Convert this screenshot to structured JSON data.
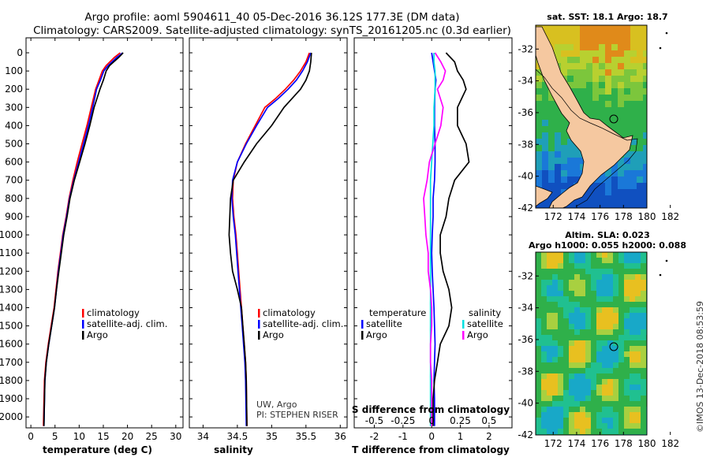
{
  "title": {
    "line1": "Argo profile: aoml 5904611_40 05-Dec-2016 36.12S 177.3E (DM data)",
    "line2": "Climatology: CARS2009. Satellite-adjusted climatology: synTS_20161205.nc (0.3d earlier)"
  },
  "watermark": "©IMOS 13-Dec-2018 08:53:59",
  "colors": {
    "climatology": "#ff0000",
    "satellite": "#0000ff",
    "argo": "#000000",
    "satellite_salinity": "#00e0e0",
    "argo_salinity": "#ff00ff",
    "land": "#f5c8a0"
  },
  "chart_data": [
    {
      "type": "line",
      "name": "temperature-panel",
      "xlabel": "temperature (deg C)",
      "xlim": [
        -1,
        31.5
      ],
      "ylim": [
        0,
        2060
      ],
      "y_inverted": true,
      "xticks": [
        "0",
        "5",
        "10",
        "15",
        "20",
        "25",
        "30"
      ],
      "xtick_values": [
        0,
        5,
        10,
        15,
        20,
        25,
        30
      ],
      "yticks": [
        "0",
        "100",
        "200",
        "300",
        "400",
        "500",
        "600",
        "700",
        "800",
        "900",
        "1000",
        "1100",
        "1200",
        "1300",
        "1400",
        "1500",
        "1600",
        "1700",
        "1800",
        "1900",
        "2000"
      ],
      "ytick_values": [
        0,
        100,
        200,
        300,
        400,
        500,
        600,
        700,
        800,
        900,
        1000,
        1100,
        1200,
        1300,
        1400,
        1500,
        1600,
        1700,
        1800,
        1900,
        2000
      ],
      "legend": [
        "climatology",
        "satellite-adj. clim.",
        "Argo"
      ],
      "legend_position": "lower-right",
      "series": [
        {
          "name": "climatology",
          "color": "#ff0000",
          "x": [
            18.5,
            17.3,
            15.6,
            14.8,
            14.1,
            13.4,
            12.5,
            11.6,
            10.6,
            9.6,
            8.7,
            7.9,
            7.3,
            6.6,
            6.1,
            5.6,
            5.2,
            4.8,
            4.2,
            3.6,
            3.1,
            2.8,
            2.6
          ],
          "y": [
            0,
            25,
            70,
            100,
            150,
            200,
            300,
            400,
            500,
            600,
            700,
            800,
            900,
            1000,
            1100,
            1200,
            1300,
            1400,
            1500,
            1600,
            1700,
            1800,
            2050
          ]
        },
        {
          "name": "satellite-adj. clim.",
          "color": "#0000ff",
          "x": [
            19.0,
            17.8,
            16.0,
            15.1,
            14.4,
            13.6,
            12.8,
            11.9,
            10.9,
            9.9,
            8.9,
            8.0,
            7.4,
            6.7,
            6.2,
            5.7,
            5.3,
            4.9,
            4.3,
            3.7,
            3.2,
            2.9,
            2.7
          ],
          "y": [
            0,
            25,
            70,
            100,
            150,
            200,
            300,
            400,
            500,
            600,
            700,
            800,
            900,
            1000,
            1100,
            1200,
            1300,
            1400,
            1500,
            1600,
            1700,
            1800,
            2050
          ]
        },
        {
          "name": "Argo",
          "color": "#000000",
          "x": [
            19.1,
            18.2,
            16.3,
            15.6,
            15.0,
            14.3,
            13.1,
            12.2,
            11.2,
            10.1,
            9.0,
            8.1,
            7.5,
            6.8,
            6.3,
            5.8,
            5.3,
            4.9,
            4.3,
            3.7,
            3.2,
            2.9,
            2.7
          ],
          "y": [
            0,
            25,
            70,
            100,
            150,
            200,
            300,
            400,
            500,
            600,
            700,
            800,
            900,
            1000,
            1100,
            1200,
            1300,
            1400,
            1500,
            1600,
            1700,
            1800,
            2050
          ]
        }
      ]
    },
    {
      "type": "line",
      "name": "salinity-panel",
      "xlabel": "salinity",
      "xlim": [
        33.8,
        36.1
      ],
      "ylim": [
        0,
        2060
      ],
      "y_inverted": true,
      "xticks": [
        "34",
        "34.5",
        "35",
        "35.5",
        "36"
      ],
      "xtick_values": [
        34,
        34.5,
        35,
        35.5,
        36
      ],
      "legend": [
        "climatology",
        "satellite-adj. clim.",
        "Argo"
      ],
      "legend_position": "lower-right",
      "annotation": [
        "UW, Argo",
        "PI: STEPHEN RISER"
      ],
      "series": [
        {
          "name": "climatology",
          "color": "#ff0000",
          "x": [
            35.55,
            35.5,
            35.42,
            35.32,
            35.2,
            35.06,
            34.9,
            34.76,
            34.62,
            34.5,
            34.44,
            34.43,
            34.45,
            34.48,
            34.5,
            34.52,
            34.54,
            34.56,
            34.58,
            34.6,
            34.62,
            34.63,
            34.64
          ],
          "y": [
            0,
            50,
            100,
            150,
            200,
            250,
            300,
            400,
            500,
            600,
            700,
            800,
            900,
            1000,
            1100,
            1200,
            1300,
            1400,
            1500,
            1600,
            1700,
            1800,
            2050
          ]
        },
        {
          "name": "satellite-adj. clim.",
          "color": "#0000ff",
          "x": [
            35.57,
            35.52,
            35.45,
            35.36,
            35.24,
            35.1,
            34.94,
            34.78,
            34.63,
            34.5,
            34.43,
            34.42,
            34.44,
            34.47,
            34.49,
            34.51,
            34.53,
            34.55,
            34.57,
            34.59,
            34.61,
            34.62,
            34.63
          ],
          "y": [
            0,
            50,
            100,
            150,
            200,
            250,
            300,
            400,
            500,
            600,
            700,
            800,
            900,
            1000,
            1100,
            1200,
            1300,
            1400,
            1500,
            1600,
            1700,
            1800,
            2050
          ]
        },
        {
          "name": "Argo",
          "color": "#000000",
          "x": [
            35.58,
            35.57,
            35.55,
            35.5,
            35.42,
            35.3,
            35.18,
            35.0,
            34.78,
            34.6,
            34.44,
            34.4,
            34.39,
            34.38,
            34.4,
            34.43,
            34.5,
            34.56,
            34.58,
            34.6,
            34.62,
            34.63,
            34.64
          ],
          "y": [
            0,
            50,
            100,
            150,
            200,
            250,
            300,
            400,
            500,
            600,
            700,
            800,
            900,
            1000,
            1100,
            1200,
            1300,
            1400,
            1500,
            1600,
            1700,
            1800,
            2050
          ]
        }
      ]
    },
    {
      "type": "line",
      "name": "difference-panel",
      "xlabel": "T difference from climatology",
      "xlabel_secondary": "S difference from climatology",
      "xlim": [
        -2.7,
        2.8
      ],
      "ylim": [
        0,
        2060
      ],
      "y_inverted": true,
      "xticks": [
        "-2",
        "-1",
        "0",
        "1",
        "2"
      ],
      "xtick_values": [
        -2,
        -1,
        0,
        1,
        2
      ],
      "xticks_secondary": [
        "-0.5",
        "-0.25",
        "0",
        "0.25",
        "0.5"
      ],
      "legend_temperature": {
        "heading": "temperature",
        "items": [
          "satellite",
          "Argo"
        ]
      },
      "legend_salinity": {
        "heading": "salinity",
        "items": [
          "satellite",
          "Argo"
        ]
      },
      "series": [
        {
          "name": "temperature satellite",
          "color": "#0000ff",
          "x": [
            0.0,
            0.05,
            0.1,
            0.15,
            0.12,
            0.1,
            0.1,
            0.12,
            0.12,
            0.1,
            0.05,
            0.05,
            0.02,
            0.0,
            0.02,
            0.05,
            0.08,
            0.1,
            0.12,
            0.1,
            0.08,
            0.1,
            0.1
          ],
          "y": [
            0,
            50,
            100,
            150,
            200,
            300,
            400,
            500,
            600,
            700,
            800,
            900,
            1000,
            1100,
            1200,
            1300,
            1400,
            1500,
            1600,
            1700,
            1800,
            1900,
            2050
          ]
        },
        {
          "name": "temperature Argo",
          "color": "#000000",
          "x": [
            0.5,
            0.8,
            0.9,
            1.1,
            1.2,
            0.9,
            0.9,
            1.2,
            1.3,
            0.8,
            0.6,
            0.5,
            0.3,
            0.3,
            0.4,
            0.6,
            0.7,
            0.6,
            0.3,
            0.2,
            0.1,
            0.05,
            0.05
          ],
          "y": [
            0,
            50,
            100,
            150,
            200,
            300,
            400,
            500,
            600,
            700,
            800,
            900,
            1000,
            1100,
            1200,
            1300,
            1400,
            1500,
            1600,
            1700,
            1800,
            1900,
            2050
          ]
        },
        {
          "name": "salinity satellite",
          "color": "#00e0e0",
          "x": [
            0.02,
            0.02,
            0.03,
            0.03,
            0.03,
            0.02,
            0.02,
            0.01,
            0.0,
            -0.01,
            -0.01,
            -0.01,
            -0.01,
            -0.01,
            -0.01,
            -0.01,
            -0.01,
            -0.01,
            -0.01,
            -0.01,
            -0.01,
            -0.01,
            -0.01
          ],
          "y": [
            0,
            50,
            100,
            150,
            200,
            300,
            400,
            500,
            600,
            700,
            800,
            900,
            1000,
            1100,
            1200,
            1300,
            1400,
            1500,
            1600,
            1700,
            1800,
            1900,
            2050
          ]
        },
        {
          "name": "salinity Argo",
          "color": "#ff00ff",
          "x": [
            0.03,
            0.08,
            0.12,
            0.1,
            0.05,
            0.1,
            0.08,
            0.03,
            -0.02,
            -0.04,
            -0.07,
            -0.06,
            -0.05,
            -0.03,
            -0.03,
            -0.01,
            0.0,
            0.0,
            -0.01,
            -0.01,
            0.0,
            0.0,
            0.0
          ],
          "y": [
            0,
            50,
            100,
            150,
            200,
            300,
            400,
            500,
            600,
            700,
            800,
            900,
            1000,
            1100,
            1200,
            1300,
            1400,
            1500,
            1600,
            1700,
            1800,
            1900,
            2050
          ]
        }
      ]
    },
    {
      "type": "heatmap",
      "name": "sst-map",
      "title": "sat. SST: 18.1 Argo: 18.7",
      "xticks": [
        "172",
        "174",
        "176",
        "178",
        "180",
        "182"
      ],
      "xtick_values": [
        172,
        174,
        176,
        178,
        180,
        182
      ],
      "yticks": [
        "-32",
        "-34",
        "-36",
        "-38",
        "-40",
        "-42"
      ],
      "ytick_values": [
        -32,
        -34,
        -36,
        -38,
        -40,
        -42
      ],
      "xlim": [
        170.5,
        184
      ],
      "ylim": [
        -42,
        -30.5
      ],
      "profile_location": {
        "lon": 177.3,
        "lat": -36.12
      }
    },
    {
      "type": "heatmap",
      "name": "sla-map",
      "title": "Altim. SLA: 0.023",
      "subtitle": "Argo h1000: 0.055 h2000: 0.088",
      "xticks": [
        "172",
        "174",
        "176",
        "178",
        "180",
        "182"
      ],
      "xtick_values": [
        172,
        174,
        176,
        178,
        180,
        182
      ],
      "yticks": [
        "-32",
        "-34",
        "-36",
        "-38",
        "-40",
        "-42"
      ],
      "ytick_values": [
        -32,
        -34,
        -36,
        -38,
        -40,
        -42
      ],
      "xlim": [
        170.5,
        184
      ],
      "ylim": [
        -42,
        -30.5
      ],
      "profile_location": {
        "lon": 177.3,
        "lat": -36.12
      }
    }
  ]
}
